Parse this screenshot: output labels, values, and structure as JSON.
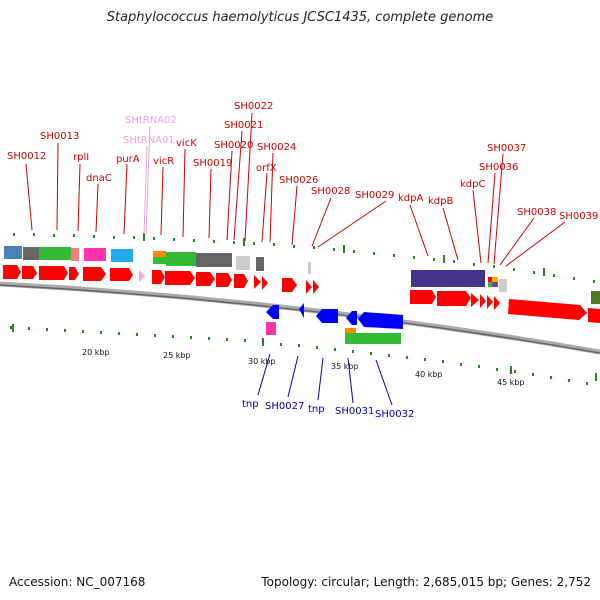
{
  "title": "Staphylococcus haemolyticus JCSC1435, complete genome",
  "accession_text": "Accession: NC_007168",
  "summary_text": "Topology: circular; Length: 2,685,015 bp; Genes: 2,752",
  "colors": {
    "forward_gene_label": "#cc0000",
    "reverse_gene_label": "#0000aa",
    "trna_label": "#f0a0d0",
    "forward_cds": "#ff0000",
    "reverse_cds": "#0000ff",
    "tick": "#228822",
    "backbone": "#777777"
  },
  "scale_labels": [
    {
      "text": "20 kbp",
      "kbp": 20
    },
    {
      "text": "25 kbp",
      "kbp": 25
    },
    {
      "text": "30 kbp",
      "kbp": 30
    },
    {
      "text": "35 kbp",
      "kbp": 35
    },
    {
      "text": "40 kbp",
      "kbp": 40
    },
    {
      "text": "45 kbp",
      "kbp": 45
    }
  ],
  "forward_gene_labels": [
    {
      "text": "SH0012",
      "kind": "cds"
    },
    {
      "text": "SH0013",
      "kind": "cds"
    },
    {
      "text": "rplI",
      "kind": "cds"
    },
    {
      "text": "dnaC",
      "kind": "cds"
    },
    {
      "text": "purA",
      "kind": "cds"
    },
    {
      "text": "SHtRNA02",
      "kind": "trna"
    },
    {
      "text": "SHtRNA01",
      "kind": "trna"
    },
    {
      "text": "vicR",
      "kind": "cds"
    },
    {
      "text": "vicK",
      "kind": "cds"
    },
    {
      "text": "SH0019",
      "kind": "cds"
    },
    {
      "text": "SH0020",
      "kind": "cds"
    },
    {
      "text": "SH0021",
      "kind": "cds"
    },
    {
      "text": "SH0022",
      "kind": "cds"
    },
    {
      "text": "orfX",
      "kind": "cds"
    },
    {
      "text": "SH0024",
      "kind": "cds"
    },
    {
      "text": "SH0026",
      "kind": "cds"
    },
    {
      "text": "SH0028",
      "kind": "cds"
    },
    {
      "text": "SH0029",
      "kind": "cds"
    },
    {
      "text": "kdpA",
      "kind": "cds"
    },
    {
      "text": "kdpB",
      "kind": "cds"
    },
    {
      "text": "kdpC",
      "kind": "cds"
    },
    {
      "text": "SH0036",
      "kind": "cds"
    },
    {
      "text": "SH0037",
      "kind": "cds"
    },
    {
      "text": "SH0038",
      "kind": "cds"
    },
    {
      "text": "SH0039",
      "kind": "cds"
    }
  ],
  "reverse_gene_labels": [
    {
      "text": "tnp"
    },
    {
      "text": "SH0027"
    },
    {
      "text": "tnp"
    },
    {
      "text": "SH0031"
    },
    {
      "text": "SH0032"
    }
  ]
}
